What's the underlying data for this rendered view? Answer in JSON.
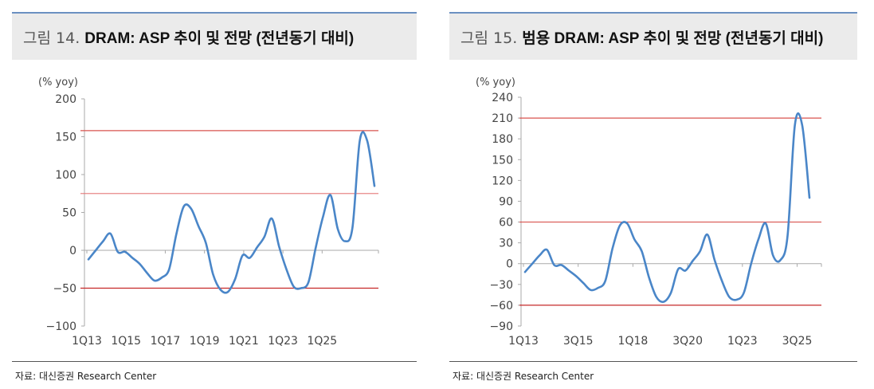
{
  "charts": [
    {
      "figure_label": "그림 14",
      "title": "DRAM: ASP 추이 및 전망 (전년동기 대비)",
      "source": "자료: 대신증권 Research Center",
      "chart_data": {
        "type": "line",
        "unit_label": "(% yoy)",
        "ylim": [
          -100,
          200
        ],
        "yticks": [
          -100,
          -50,
          0,
          50,
          100,
          150,
          200
        ],
        "x_tick_labels": [
          "1Q13",
          "1Q15",
          "1Q17",
          "1Q19",
          "1Q21",
          "1Q23",
          "1Q25"
        ],
        "x_start": 0,
        "x_end": 59,
        "x_tick_positions": [
          0,
          8,
          16,
          24,
          32,
          40,
          48
        ],
        "reference_lines": [
          {
            "y": 158,
            "color": "#d9534f",
            "opacity": 1.0
          },
          {
            "y": 75,
            "color": "#e57373",
            "opacity": 0.85
          },
          {
            "y": -50,
            "color": "#c62828",
            "opacity": 1.0
          }
        ],
        "series": [
          {
            "color": "#4a86c8",
            "values": [
              -12,
              0,
              12,
              22,
              -2,
              -2,
              -10,
              -18,
              -30,
              -40,
              -36,
              -25,
              22,
              58,
              55,
              32,
              10,
              -32,
              -52,
              -55,
              -38,
              -7,
              -10,
              4,
              18,
              42,
              5,
              -25,
              -48,
              -50,
              -42,
              4,
              45,
              73,
              28,
              12,
              30,
              145,
              145,
              85
            ]
          }
        ]
      }
    },
    {
      "figure_label": "그림 15",
      "title": "범용 DRAM: ASP 추이 및 전망 (전년동기 대비)",
      "source": "자료: 대신증권 Research Center",
      "chart_data": {
        "type": "line",
        "unit_label": "(% yoy)",
        "ylim": [
          -90,
          240
        ],
        "yticks": [
          -90,
          -60,
          -30,
          0,
          30,
          60,
          90,
          120,
          150,
          180,
          210,
          240
        ],
        "x_tick_labels": [
          "1Q13",
          "3Q15",
          "1Q18",
          "3Q20",
          "1Q23",
          "3Q25"
        ],
        "x_start": 0,
        "x_end": 54,
        "x_tick_positions": [
          0,
          10,
          20,
          30,
          40,
          50
        ],
        "reference_lines": [
          {
            "y": 210,
            "color": "#d9534f",
            "opacity": 1.0
          },
          {
            "y": 60,
            "color": "#d9534f",
            "opacity": 1.0
          },
          {
            "y": -60,
            "color": "#c62828",
            "opacity": 1.0
          }
        ],
        "series": [
          {
            "color": "#4a86c8",
            "values": [
              -12,
              0,
              12,
              20,
              -2,
              -2,
              -10,
              -18,
              -28,
              -38,
              -35,
              -25,
              22,
              55,
              58,
              35,
              18,
              -20,
              -48,
              -55,
              -42,
              -8,
              -10,
              4,
              18,
              42,
              5,
              -25,
              -48,
              -52,
              -42,
              0,
              35,
              58,
              12,
              5,
              40,
              200,
              200,
              95
            ]
          }
        ]
      }
    }
  ]
}
